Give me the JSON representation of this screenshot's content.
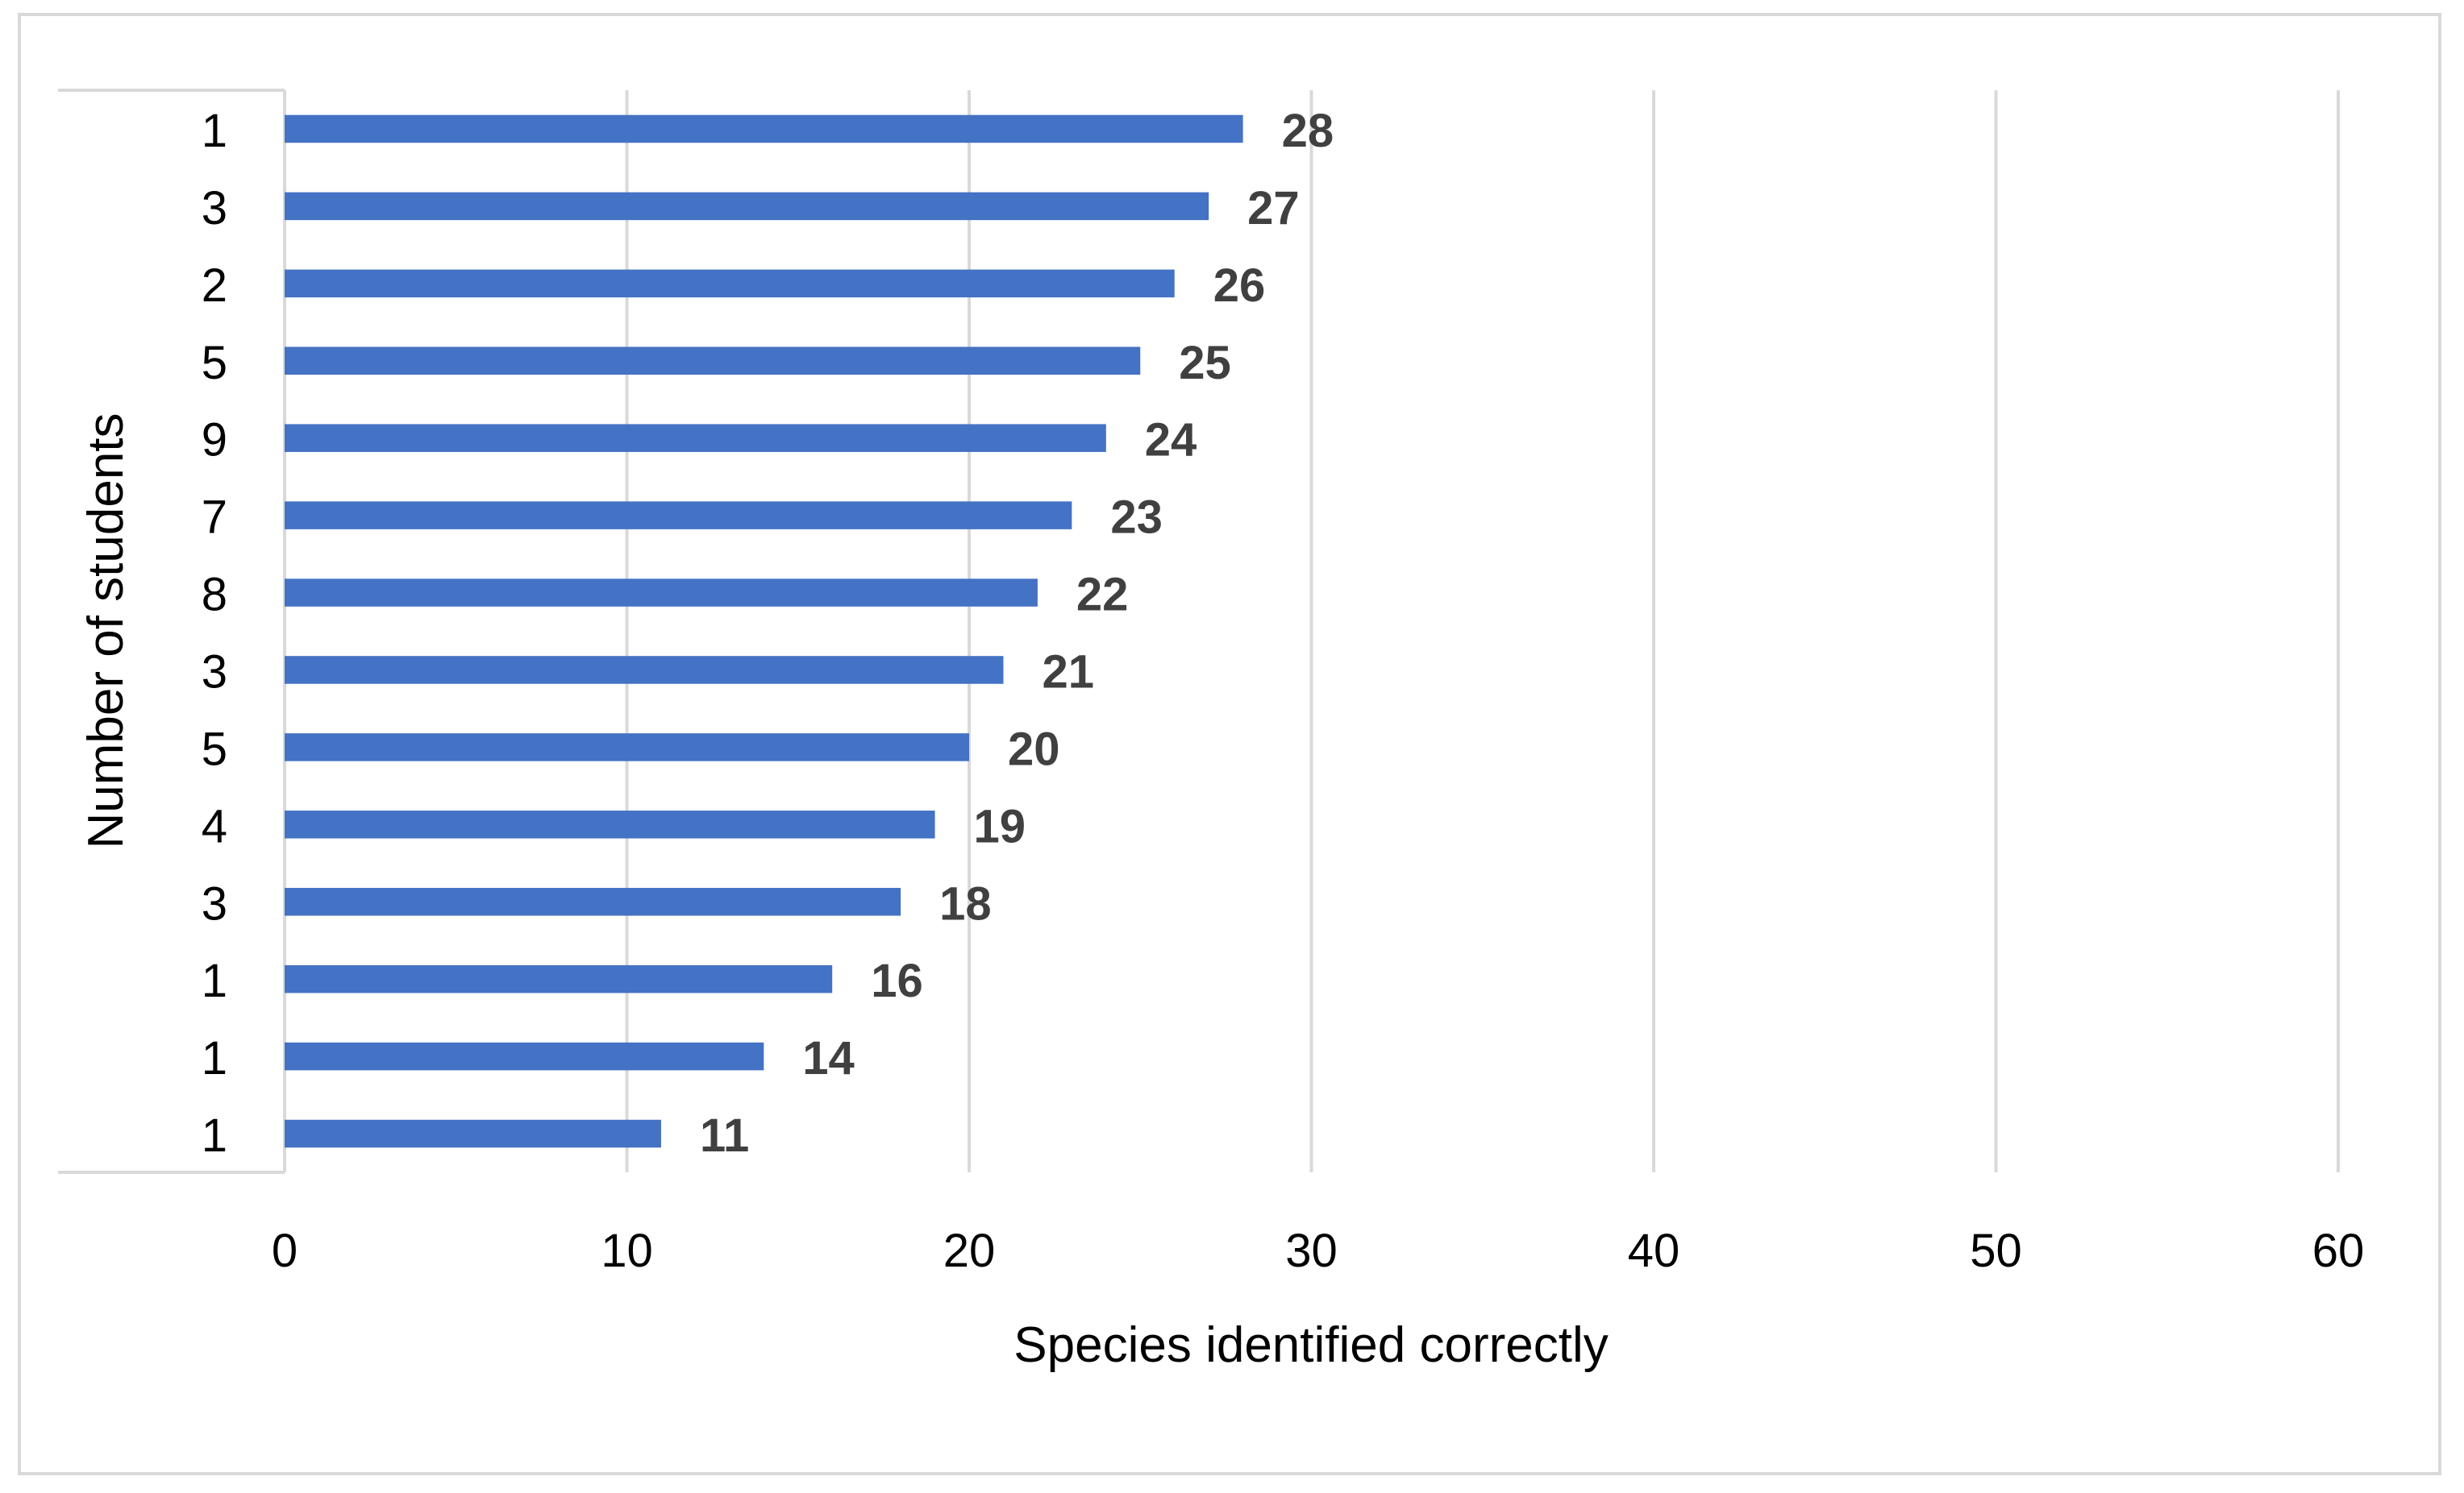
{
  "chart_data": {
    "type": "bar",
    "orientation": "horizontal",
    "title": "",
    "xlabel": "Species identified correctly",
    "ylabel": "Number of students",
    "xlim": [
      0,
      60
    ],
    "xticks": [
      "0",
      "10",
      "20",
      "30",
      "40",
      "50",
      "60"
    ],
    "grid": "vertical",
    "legend": "none",
    "bar_color": "#4472c4",
    "categories": [
      "1",
      "3",
      "2",
      "5",
      "9",
      "7",
      "8",
      "3",
      "5",
      "4",
      "3",
      "1",
      "1",
      "1"
    ],
    "values": [
      28,
      27,
      26,
      25,
      24,
      23,
      22,
      21,
      20,
      19,
      18,
      16,
      14,
      11
    ],
    "data_labels": [
      "28",
      "27",
      "26",
      "25",
      "24",
      "23",
      "22",
      "21",
      "20",
      "19",
      "18",
      "16",
      "14",
      "11"
    ]
  }
}
